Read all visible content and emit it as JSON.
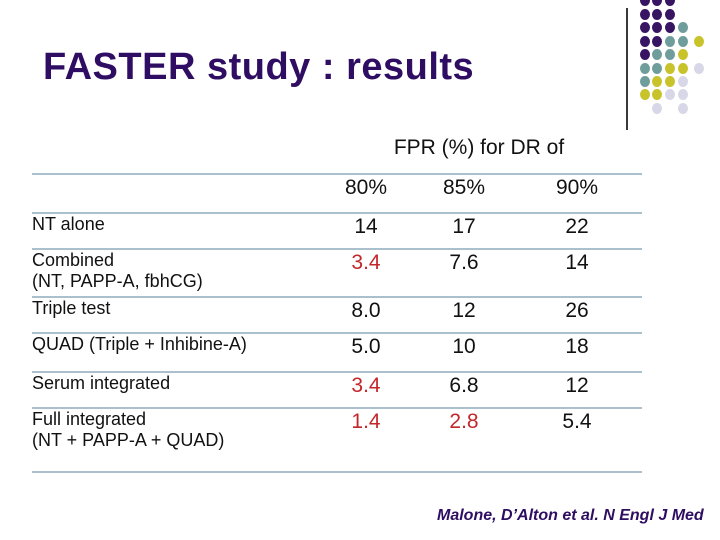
{
  "slide": {
    "title": "FASTER study : results",
    "citation": "Malone, D’Alton et al. N Engl J Med"
  },
  "table": {
    "spanning_header": "FPR (%) for DR of",
    "column_headers": [
      "80%",
      "85%",
      "90%"
    ],
    "rows": [
      {
        "label": "NT alone",
        "values": [
          {
            "v": "14",
            "red": false
          },
          {
            "v": "17",
            "red": false
          },
          {
            "v": "22",
            "red": false
          }
        ]
      },
      {
        "label": "Combined\n(NT, PAPP-A, fbhCG)",
        "values": [
          {
            "v": "3.4",
            "red": true
          },
          {
            "v": "7.6",
            "red": false
          },
          {
            "v": "14",
            "red": false
          }
        ]
      },
      {
        "label": "Triple test",
        "values": [
          {
            "v": "8.0",
            "red": false
          },
          {
            "v": "12",
            "red": false
          },
          {
            "v": "26",
            "red": false
          }
        ]
      },
      {
        "label": "QUAD (Triple + Inhibine-A)",
        "values": [
          {
            "v": "5.0",
            "red": false
          },
          {
            "v": "10",
            "red": false
          },
          {
            "v": "18",
            "red": false
          }
        ]
      },
      {
        "label": "Serum integrated",
        "values": [
          {
            "v": "3.4",
            "red": true
          },
          {
            "v": "6.8",
            "red": false
          },
          {
            "v": "12",
            "red": false
          }
        ]
      },
      {
        "label": "Full integrated\n(NT + PAPP-A + QUAD)",
        "values": [
          {
            "v": "1.4",
            "red": true
          },
          {
            "v": "2.8",
            "red": true
          },
          {
            "v": "5.4",
            "red": false
          }
        ]
      }
    ]
  },
  "colors": {
    "title_text": "#2E0D62",
    "highlight_value": "#C2272B",
    "table_line": "#ABC0CD",
    "body_text": "#111111"
  },
  "decoration": {
    "dot_colors": {
      "P": "#371563",
      "T": "#6F9D9B",
      "Y": "#C8C32B",
      "G": "#D7D7E8"
    },
    "dots": [
      [
        645,
        0,
        "P"
      ],
      [
        657,
        0,
        "P"
      ],
      [
        670,
        0,
        "P"
      ],
      [
        645,
        14,
        "P"
      ],
      [
        657,
        14,
        "P"
      ],
      [
        670,
        14,
        "P"
      ],
      [
        645,
        27,
        "P"
      ],
      [
        657,
        27,
        "P"
      ],
      [
        670,
        27,
        "P"
      ],
      [
        683,
        27,
        "T"
      ],
      [
        645,
        41,
        "P"
      ],
      [
        657,
        41,
        "P"
      ],
      [
        670,
        41,
        "T"
      ],
      [
        683,
        41,
        "T"
      ],
      [
        699,
        41,
        "Y"
      ],
      [
        645,
        54,
        "P"
      ],
      [
        657,
        54,
        "T"
      ],
      [
        670,
        54,
        "T"
      ],
      [
        683,
        54,
        "Y"
      ],
      [
        645,
        68,
        "T"
      ],
      [
        657,
        68,
        "T"
      ],
      [
        670,
        68,
        "Y"
      ],
      [
        683,
        68,
        "Y"
      ],
      [
        699,
        68,
        "G"
      ],
      [
        645,
        81,
        "T"
      ],
      [
        657,
        81,
        "Y"
      ],
      [
        670,
        81,
        "Y"
      ],
      [
        683,
        81,
        "G"
      ],
      [
        645,
        94,
        "Y"
      ],
      [
        657,
        94,
        "Y"
      ],
      [
        670,
        94,
        "G"
      ],
      [
        683,
        94,
        "G"
      ],
      [
        657,
        108,
        "G"
      ],
      [
        683,
        108,
        "G"
      ]
    ]
  }
}
